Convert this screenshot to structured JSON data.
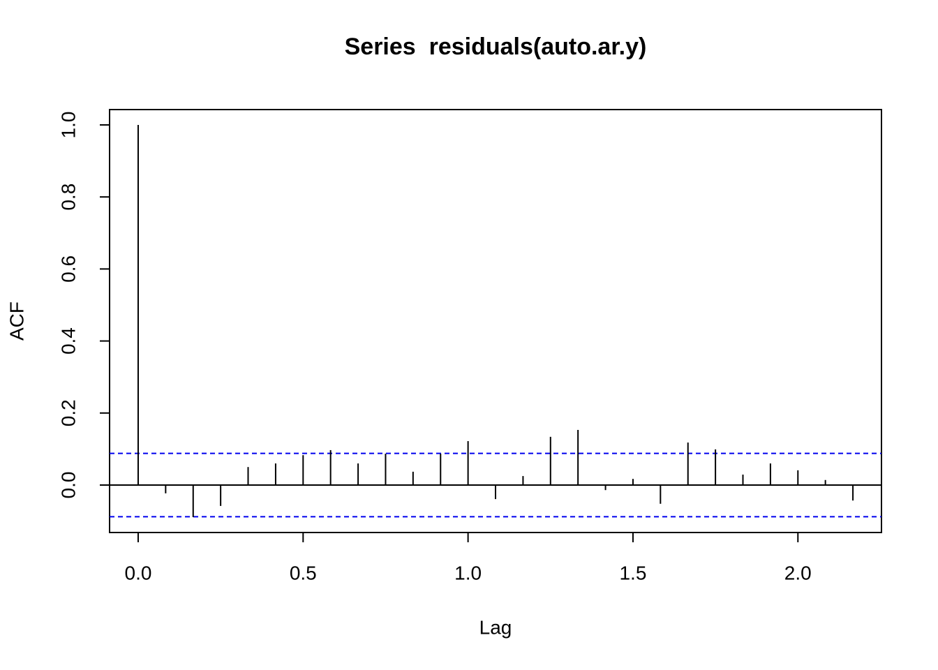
{
  "chart_data": {
    "type": "acf",
    "title": "Series  residuals(auto.ar.y)",
    "xlabel": "Lag",
    "ylabel": "ACF",
    "x": [
      0,
      0.0833,
      0.1667,
      0.25,
      0.3333,
      0.4167,
      0.5,
      0.5833,
      0.6667,
      0.75,
      0.8333,
      0.9167,
      1,
      1.0833,
      1.1667,
      1.25,
      1.3333,
      1.4167,
      1.5,
      1.5833,
      1.6667,
      1.75,
      1.8333,
      1.9167,
      2,
      2.0833,
      2.1667
    ],
    "values": [
      1.0,
      -0.023,
      -0.089,
      -0.058,
      0.05,
      0.06,
      0.083,
      0.097,
      0.06,
      0.087,
      0.037,
      0.087,
      0.122,
      -0.039,
      0.025,
      0.134,
      0.153,
      -0.014,
      0.017,
      -0.052,
      0.118,
      0.099,
      0.029,
      0.06,
      0.041,
      0.014,
      -0.043
    ],
    "color": "#000000",
    "ci": [
      0.088,
      -0.088
    ],
    "ci_color": "#0000ee",
    "xlim": [
      -0.0867,
      2.2533
    ],
    "ylim": [
      -0.1318,
      1.0426
    ],
    "xticks": [
      {
        "value": 0,
        "label": "0.0"
      },
      0.5,
      {
        "value": 1,
        "label": "1.0"
      },
      1.5,
      {
        "value": 2,
        "label": "2.0"
      }
    ],
    "yticks": [
      {
        "value": 0,
        "label": "0.0"
      },
      0.2,
      0.4,
      0.6,
      0.8,
      {
        "value": 1,
        "label": "1.0"
      }
    ]
  }
}
